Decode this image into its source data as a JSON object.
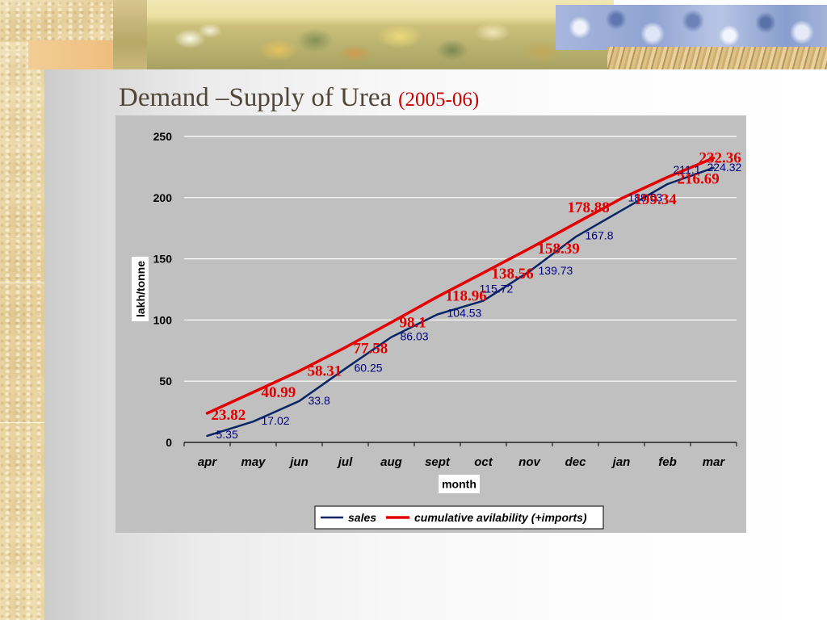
{
  "slide": {
    "title": "Demand –Supply of Urea",
    "title_year": "(2005-06)"
  },
  "chart_data": {
    "type": "line",
    "categories": [
      "apr",
      "may",
      "jun",
      "jul",
      "aug",
      "sept",
      "oct",
      "nov",
      "dec",
      "jan",
      "feb",
      "mar"
    ],
    "series": [
      {
        "name": "sales",
        "color": "#0a2566",
        "values": [
          5.35,
          17.02,
          33.8,
          60.25,
          86.03,
          104.53,
          115.72,
          139.73,
          167.8,
          189.53,
          211.1,
          224.32
        ]
      },
      {
        "name": "cumulative avilability (+imports)",
        "color": "#e20000",
        "values": [
          23.82,
          40.99,
          58.31,
          77.58,
          98.1,
          118.96,
          138.56,
          158.39,
          178.88,
          199.34,
          216.69,
          232.36
        ]
      }
    ],
    "xlabel": "month",
    "ylabel": "lakh/tonne",
    "ylim": [
      0,
      250
    ],
    "yticks": [
      0,
      50,
      100,
      150,
      200,
      250
    ],
    "grid": true,
    "legend": "bottom",
    "plot_background": "#c0c0c0",
    "gridline_color": "#ffffff"
  }
}
